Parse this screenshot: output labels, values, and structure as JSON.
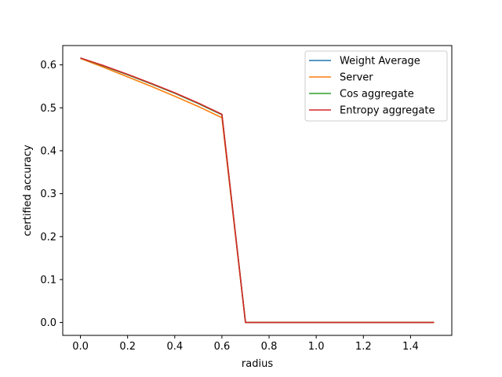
{
  "chart_data": {
    "type": "line",
    "title": "",
    "xlabel": "radius",
    "ylabel": "certified accuracy",
    "xlim": [
      -0.075,
      1.575
    ],
    "ylim": [
      -0.03,
      0.645
    ],
    "xticks": [
      0.0,
      0.2,
      0.4,
      0.6,
      0.8,
      1.0,
      1.2,
      1.4
    ],
    "xtick_labels": [
      "0.0",
      "0.2",
      "0.4",
      "0.6",
      "0.8",
      "1.0",
      "1.2",
      "1.4"
    ],
    "yticks": [
      0.0,
      0.1,
      0.2,
      0.3,
      0.4,
      0.5,
      0.6
    ],
    "ytick_labels": [
      "0.0",
      "0.1",
      "0.2",
      "0.3",
      "0.4",
      "0.5",
      "0.6"
    ],
    "grid": false,
    "legend_position": "top-right",
    "x": [
      0.0,
      0.1,
      0.2,
      0.3,
      0.4,
      0.5,
      0.6,
      0.7,
      0.8,
      0.9,
      1.0,
      1.1,
      1.2,
      1.3,
      1.4,
      1.5
    ],
    "series": [
      {
        "name": "Weight Average",
        "color": "#1f77b4",
        "values": [
          0.616,
          0.597,
          0.577,
          0.556,
          0.534,
          0.51,
          0.484,
          0.0,
          0.0,
          0.0,
          0.0,
          0.0,
          0.0,
          0.0,
          0.0,
          0.0
        ]
      },
      {
        "name": "Server",
        "color": "#ff7f0e",
        "values": [
          0.615,
          0.594,
          0.572,
          0.55,
          0.527,
          0.503,
          0.477,
          0.0,
          0.0,
          0.0,
          0.0,
          0.0,
          0.0,
          0.0,
          0.0,
          0.0
        ]
      },
      {
        "name": "Cos aggregate",
        "color": "#2ca02c",
        "values": [
          0.616,
          0.597,
          0.577,
          0.556,
          0.534,
          0.51,
          0.484,
          0.0,
          0.0,
          0.0,
          0.0,
          0.0,
          0.0,
          0.0,
          0.0,
          0.0
        ]
      },
      {
        "name": "Entropy aggregate",
        "color": "#d62728",
        "values": [
          0.616,
          0.598,
          0.578,
          0.557,
          0.535,
          0.511,
          0.485,
          0.0,
          0.0,
          0.0,
          0.0,
          0.0,
          0.0,
          0.0,
          0.0,
          0.0
        ]
      }
    ]
  }
}
